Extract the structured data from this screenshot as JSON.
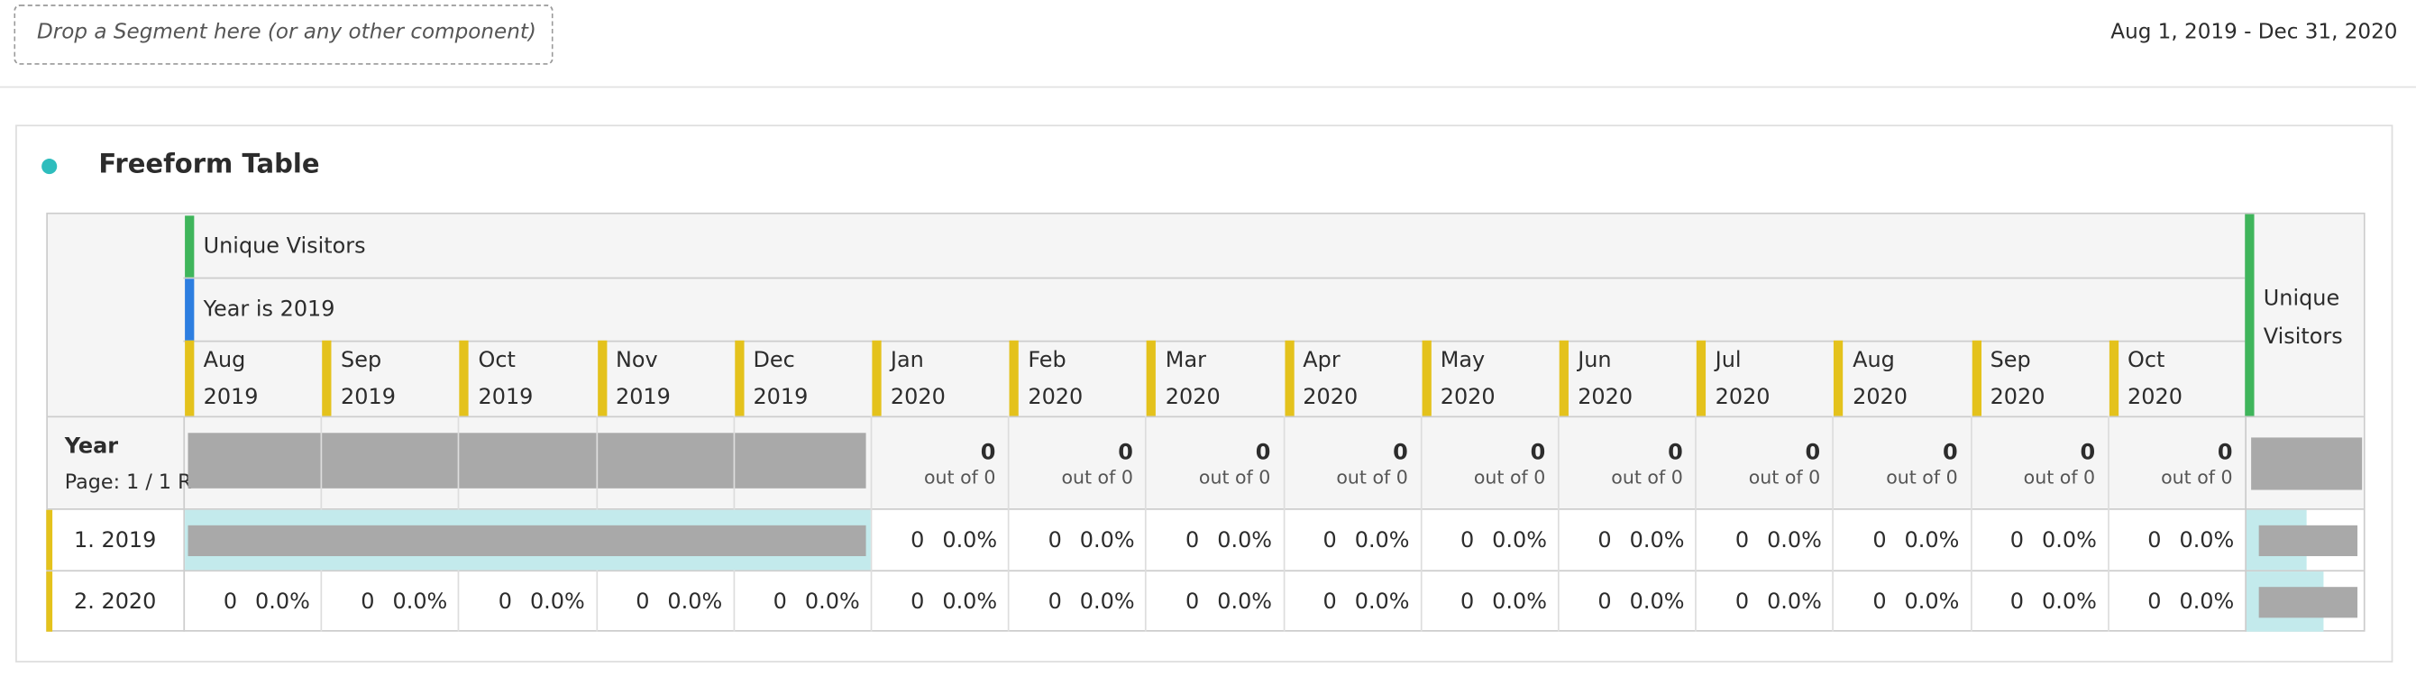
{
  "toolbar": {
    "drop_zone": "Drop a Segment here (or any other component)",
    "date_range": "Aug 1, 2019 - Dec 31, 2020"
  },
  "panel": {
    "title": "Freeform Table"
  },
  "table": {
    "metric": "Unique Visitors",
    "segment": "Year is 2019",
    "columns": [
      {
        "month": "Aug",
        "year": "2019"
      },
      {
        "month": "Sep",
        "year": "2019"
      },
      {
        "month": "Oct",
        "year": "2019"
      },
      {
        "month": "Nov",
        "year": "2019"
      },
      {
        "month": "Dec",
        "year": "2019"
      },
      {
        "month": "Jan",
        "year": "2020"
      },
      {
        "month": "Feb",
        "year": "2020"
      },
      {
        "month": "Mar",
        "year": "2020"
      },
      {
        "month": "Apr",
        "year": "2020"
      },
      {
        "month": "May",
        "year": "2020"
      },
      {
        "month": "Jun",
        "year": "2020"
      },
      {
        "month": "Jul",
        "year": "2020"
      },
      {
        "month": "Aug",
        "year": "2020"
      },
      {
        "month": "Sep",
        "year": "2020"
      },
      {
        "month": "Oct",
        "year": "2020"
      }
    ],
    "extra_metric": "Unique Visitors",
    "dimension": "Year",
    "page": "Page: 1 / 1 R",
    "totals": [
      null,
      null,
      null,
      null,
      null,
      {
        "count": 0,
        "text": "out of 0"
      },
      {
        "count": 0,
        "text": "out of 0"
      },
      {
        "count": 0,
        "text": "out of 0"
      },
      {
        "count": 0,
        "text": "out of 0"
      },
      {
        "count": 0,
        "text": "out of 0"
      },
      {
        "count": 0,
        "text": "out of 0"
      },
      {
        "count": 0,
        "text": "out of 0"
      },
      {
        "count": 0,
        "text": "out of 0"
      },
      {
        "count": 0,
        "text": "out of 0"
      },
      {
        "count": 0,
        "text": "out of 0"
      }
    ],
    "rows": [
      {
        "label": "1. 2019",
        "cells": [
          null,
          null,
          null,
          null,
          null,
          {
            "count": 0,
            "percent": "0.0%"
          },
          {
            "count": 0,
            "percent": "0.0%"
          },
          {
            "count": 0,
            "percent": "0.0%"
          },
          {
            "count": 0,
            "percent": "0.0%"
          },
          {
            "count": 0,
            "percent": "0.0%"
          },
          {
            "count": 0,
            "percent": "0.0%"
          },
          {
            "count": 0,
            "percent": "0.0%"
          },
          {
            "count": 0,
            "percent": "0.0%"
          },
          {
            "count": 0,
            "percent": "0.0%"
          },
          {
            "count": 0,
            "percent": "0.0%"
          }
        ]
      },
      {
        "label": "2. 2020",
        "cells": [
          {
            "count": 0,
            "percent": "0.0%"
          },
          {
            "count": 0,
            "percent": "0.0%"
          },
          {
            "count": 0,
            "percent": "0.0%"
          },
          {
            "count": 0,
            "percent": "0.0%"
          },
          {
            "count": 0,
            "percent": "0.0%"
          },
          {
            "count": 0,
            "percent": "0.0%"
          },
          {
            "count": 0,
            "percent": "0.0%"
          },
          {
            "count": 0,
            "percent": "0.0%"
          },
          {
            "count": 0,
            "percent": "0.0%"
          },
          {
            "count": 0,
            "percent": "0.0%"
          },
          {
            "count": 0,
            "percent": "0.0%"
          },
          {
            "count": 0,
            "percent": "0.0%"
          },
          {
            "count": 0,
            "percent": "0.0%"
          },
          {
            "count": 0,
            "percent": "0.0%"
          },
          {
            "count": 0,
            "percent": "0.0%"
          }
        ]
      }
    ]
  }
}
